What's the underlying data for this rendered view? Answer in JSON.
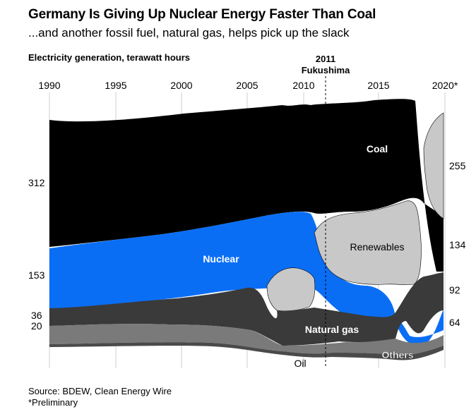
{
  "chart_data": {
    "type": "area",
    "title": "Germany Is Giving Up Nuclear Energy Faster Than Coal",
    "subtitle": "...and another fossil fuel, natural gas, helps pick up the slack",
    "ylabel": "Electricity generation, terawatt hours",
    "x_ticks": [
      "1990",
      "1995",
      "2000",
      "2005",
      "2010",
      "2015",
      "2020*"
    ],
    "annotation": {
      "year_label": "2011",
      "event_label": "Fukushima",
      "x": 2011
    },
    "series_order_bottom_to_top": [
      "Oil",
      "Others",
      "Natural gas",
      "Renewables",
      "Nuclear",
      "Coal"
    ],
    "series": [
      {
        "name": "Coal",
        "color": "#000000",
        "label_text": "Coal",
        "end_value": 134,
        "start_value": 312
      },
      {
        "name": "Nuclear",
        "color": "#0a6ef5",
        "label_text": "Nuclear",
        "end_value": 64,
        "start_value": 153
      },
      {
        "name": "Renewables",
        "color": "#c8c8c8",
        "label_text": "Renewables",
        "end_value": 255
      },
      {
        "name": "Natural gas",
        "color": "#3a3a3a",
        "label_text": "Natural gas",
        "end_value": 92,
        "start_value": 36
      },
      {
        "name": "Others",
        "color": "#7a7a7a",
        "label_text": "Others"
      },
      {
        "name": "Oil",
        "color": "#4a4a4a",
        "label_text": "Oil"
      }
    ],
    "left_values": [
      "312",
      "153",
      "36",
      "20"
    ],
    "right_values": [
      "255",
      "134",
      "92",
      "64"
    ]
  },
  "footer": {
    "source": "Source: BDEW, Clean Energy Wire",
    "note": "*Preliminary"
  }
}
